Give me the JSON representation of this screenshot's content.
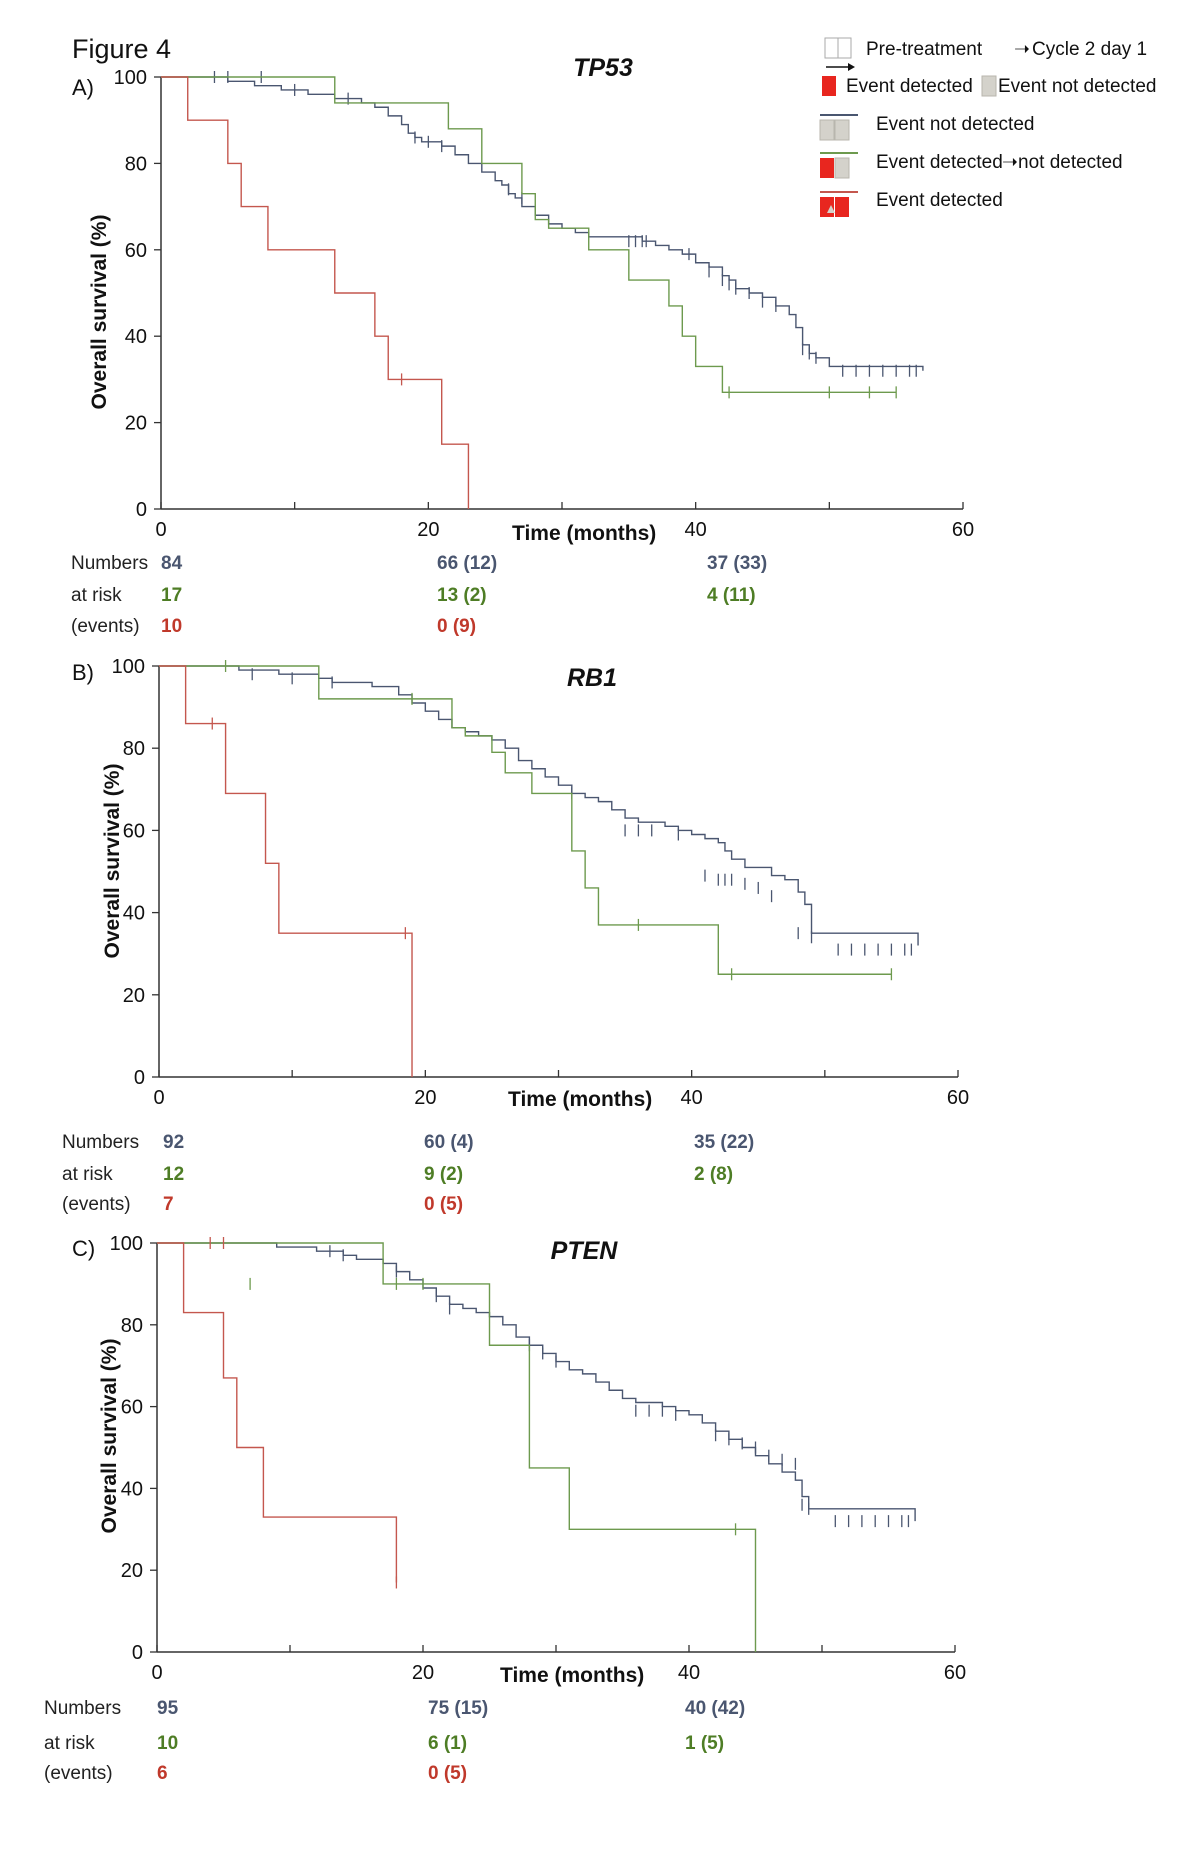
{
  "figure_title": "Figure 4",
  "legend": {
    "pretreatment_label": "Pre-treatment",
    "cycle_label": "Cycle 2 day 1",
    "detected_label": "Event detected",
    "not_detected_label": "Event not detected",
    "line_not_detected": "Event not detected",
    "line_detected_to_not_prefix": "Event detected",
    "line_detected_to_not_suffix": "not detected",
    "line_detected": "Event detected"
  },
  "colors": {
    "not_detected": "#4a5670",
    "detected_to_not": "#6d9a4e",
    "detected": "#c4574e",
    "axis": "#333333",
    "risk_grey": "#4a5670",
    "risk_green": "#4e7d25",
    "risk_red": "#c0392b",
    "swatch_red": "#e8261f",
    "swatch_grey": "#d4d2cb"
  },
  "numbers_at_risk_label": [
    "Numbers",
    "at risk",
    "(events)"
  ],
  "chart_data": [
    {
      "type": "line",
      "panel": "A)",
      "title": "TP53",
      "xlabel": "Time (months)",
      "ylabel": "Overall survival (%)",
      "xlim": [
        0,
        60
      ],
      "ylim": [
        0,
        100
      ],
      "xticks": [
        0,
        20,
        40,
        60
      ],
      "yticks": [
        0,
        20,
        40,
        60,
        80,
        100
      ],
      "series": [
        {
          "key": "not_detected",
          "x": [
            0,
            5,
            7,
            9,
            11,
            13,
            15,
            16,
            17,
            18,
            18.5,
            19,
            19.5,
            20,
            21,
            22,
            23,
            24,
            25,
            25.5,
            26,
            26.5,
            27,
            28,
            29,
            30,
            31,
            32,
            36,
            37,
            38,
            39,
            40,
            41,
            42,
            42.5,
            43,
            44,
            45,
            46,
            47,
            47.5,
            48,
            48.5,
            49,
            50,
            57
          ],
          "y": [
            100,
            99,
            98,
            97,
            96,
            95,
            94,
            93,
            91,
            89,
            87,
            86,
            85,
            85,
            84,
            82,
            80,
            78,
            76,
            75,
            73,
            72,
            70,
            68,
            66,
            65,
            64,
            63,
            62,
            61,
            60,
            59,
            57,
            56,
            54,
            53,
            51,
            50,
            49,
            47,
            45,
            42,
            38,
            36,
            35,
            33,
            32
          ],
          "censors": [
            [
              4,
              100
            ],
            [
              5,
              100
            ],
            [
              7.5,
              100
            ],
            [
              10,
              97
            ],
            [
              14,
              95
            ],
            [
              19,
              86
            ],
            [
              20,
              85
            ],
            [
              21,
              84
            ],
            [
              26,
              74
            ],
            [
              27,
              72
            ],
            [
              35,
              62
            ],
            [
              35.5,
              62
            ],
            [
              36,
              62
            ],
            [
              36.3,
              62
            ],
            [
              39.5,
              59
            ],
            [
              41,
              55
            ],
            [
              42,
              53
            ],
            [
              42.5,
              52
            ],
            [
              43,
              51
            ],
            [
              44,
              50
            ],
            [
              45,
              48
            ],
            [
              46,
              47
            ],
            [
              48,
              37
            ],
            [
              48.5,
              36
            ],
            [
              49,
              35
            ],
            [
              51,
              32
            ],
            [
              52,
              32
            ],
            [
              53,
              32
            ],
            [
              54,
              32
            ],
            [
              55,
              32
            ],
            [
              56,
              32
            ],
            [
              56.5,
              32
            ]
          ]
        },
        {
          "key": "detected_to_not",
          "x": [
            0,
            11,
            13,
            21,
            21.5,
            24,
            27,
            28,
            29,
            32,
            33,
            34,
            35,
            38,
            39,
            40,
            42,
            55
          ],
          "y": [
            100,
            100,
            94,
            94,
            88,
            80,
            73,
            67,
            65,
            60,
            60,
            60,
            53,
            47,
            40,
            33,
            27,
            27
          ],
          "censors": [
            [
              42.5,
              27
            ],
            [
              50,
              27
            ],
            [
              53,
              27
            ],
            [
              55,
              27
            ]
          ]
        },
        {
          "key": "detected",
          "x": [
            0,
            2,
            5,
            6,
            8,
            13,
            16,
            17,
            21,
            23
          ],
          "y": [
            100,
            90,
            80,
            70,
            60,
            50,
            40,
            30,
            15,
            0
          ],
          "censors": [
            [
              18,
              30
            ]
          ]
        }
      ],
      "risk": [
        {
          "key": "not_detected",
          "values": [
            "84",
            "66 (12)",
            "37 (33)"
          ]
        },
        {
          "key": "detected_to_not",
          "values": [
            "17",
            "13 (2)",
            "4 (11)"
          ]
        },
        {
          "key": "detected",
          "values": [
            "10",
            "0 (9)",
            ""
          ]
        }
      ]
    },
    {
      "type": "line",
      "panel": "B)",
      "title": "RB1",
      "xlabel": "Time (months)",
      "ylabel": "Overall survival (%)",
      "xlim": [
        0,
        60
      ],
      "ylim": [
        0,
        100
      ],
      "xticks": [
        0,
        20,
        40,
        60
      ],
      "yticks": [
        0,
        20,
        40,
        60,
        80,
        100
      ],
      "series": [
        {
          "key": "not_detected",
          "x": [
            0,
            6,
            9,
            12,
            13,
            16,
            18,
            19,
            20,
            21,
            22,
            23,
            24,
            25,
            26,
            27,
            28,
            29,
            30,
            31,
            32,
            33,
            34,
            35,
            36,
            38,
            39,
            40,
            41,
            42,
            42.5,
            43,
            44,
            46,
            47,
            48,
            48.5,
            49,
            57
          ],
          "y": [
            100,
            99,
            98,
            97,
            96,
            95,
            93,
            91,
            89,
            87,
            85,
            84,
            83,
            82,
            80,
            77,
            75,
            73,
            71,
            69,
            68,
            67,
            65,
            63,
            62,
            61,
            60,
            59,
            58,
            57,
            55,
            53,
            51,
            49,
            48,
            45,
            42,
            35,
            32
          ],
          "censors": [
            [
              7,
              98
            ],
            [
              10,
              97
            ],
            [
              13,
              96
            ],
            [
              31,
              69
            ],
            [
              35,
              60
            ],
            [
              36,
              60
            ],
            [
              37,
              60
            ],
            [
              39,
              59
            ],
            [
              41,
              49
            ],
            [
              42,
              48
            ],
            [
              42.5,
              48
            ],
            [
              43,
              48
            ],
            [
              44,
              47
            ],
            [
              45,
              46
            ],
            [
              46,
              44
            ],
            [
              48,
              35
            ],
            [
              49,
              34
            ],
            [
              51,
              31
            ],
            [
              52,
              31
            ],
            [
              53,
              31
            ],
            [
              54,
              31
            ],
            [
              55,
              31
            ],
            [
              56,
              31
            ],
            [
              56.5,
              31
            ]
          ]
        },
        {
          "key": "detected_to_not",
          "x": [
            0,
            11,
            12,
            21,
            22,
            23,
            24,
            25,
            26,
            27,
            28,
            30,
            31,
            32,
            33,
            34,
            42,
            55
          ],
          "y": [
            100,
            100,
            92,
            92,
            85,
            83,
            83,
            79,
            74,
            74,
            69,
            69,
            55,
            46,
            37,
            37,
            25,
            25
          ],
          "censors": [
            [
              5,
              100
            ],
            [
              19,
              92
            ],
            [
              36,
              37
            ],
            [
              43,
              25
            ],
            [
              55,
              25
            ]
          ]
        },
        {
          "key": "detected",
          "x": [
            0,
            2,
            5,
            8,
            9,
            19
          ],
          "y": [
            100,
            86,
            69,
            52,
            35,
            0
          ],
          "censors": [
            [
              4,
              86
            ],
            [
              18.5,
              35
            ]
          ]
        }
      ],
      "risk": [
        {
          "key": "not_detected",
          "values": [
            "92",
            "60 (4)",
            "35 (22)"
          ]
        },
        {
          "key": "detected_to_not",
          "values": [
            "12",
            "9 (2)",
            "2 (8)"
          ]
        },
        {
          "key": "detected",
          "values": [
            "7",
            "0 (5)",
            ""
          ]
        }
      ]
    },
    {
      "type": "line",
      "panel": "C)",
      "title": "PTEN",
      "xlabel": "Time (months)",
      "ylabel": "Overall survival (%)",
      "xlim": [
        0,
        60
      ],
      "ylim": [
        0,
        100
      ],
      "xticks": [
        0,
        20,
        40,
        60
      ],
      "yticks": [
        0,
        20,
        40,
        60,
        80,
        100
      ],
      "series": [
        {
          "key": "not_detected",
          "x": [
            0,
            9,
            12,
            14,
            15,
            17,
            18,
            19,
            20,
            21,
            22,
            23,
            24,
            25,
            26,
            27,
            28,
            29,
            30,
            31,
            32,
            33,
            34,
            35,
            36,
            38,
            39,
            40,
            41,
            42,
            43,
            44,
            45,
            46,
            47,
            48,
            48.5,
            49,
            57
          ],
          "y": [
            100,
            99,
            98,
            97,
            96,
            95,
            93,
            91,
            89,
            87,
            85,
            84,
            83,
            82,
            80,
            77,
            75,
            73,
            71,
            69,
            68,
            66,
            64,
            62,
            61,
            60,
            59,
            58,
            56,
            54,
            52,
            50,
            48,
            46,
            44,
            42,
            38,
            35,
            32
          ],
          "censors": [
            [
              13,
              98
            ],
            [
              14,
              97
            ],
            [
              18,
              93
            ],
            [
              21,
              87
            ],
            [
              22,
              84
            ],
            [
              28,
              75
            ],
            [
              29,
              73
            ],
            [
              30,
              71
            ],
            [
              36,
              59
            ],
            [
              37,
              59
            ],
            [
              38,
              59
            ],
            [
              39,
              58
            ],
            [
              42,
              53
            ],
            [
              43,
              52
            ],
            [
              44,
              51
            ],
            [
              45,
              50
            ],
            [
              46,
              48
            ],
            [
              47,
              47
            ],
            [
              48,
              46
            ],
            [
              48.5,
              36
            ],
            [
              49,
              35
            ],
            [
              51,
              32
            ],
            [
              52,
              32
            ],
            [
              53,
              32
            ],
            [
              54,
              32
            ],
            [
              55,
              32
            ],
            [
              56,
              32
            ],
            [
              56.5,
              32
            ]
          ]
        },
        {
          "key": "detected_to_not",
          "x": [
            0,
            6,
            17,
            18,
            21,
            25,
            25.5,
            28,
            31,
            45
          ],
          "y": [
            100,
            100,
            90,
            90,
            90,
            75,
            75,
            45,
            30,
            0
          ],
          "censors": [
            [
              7,
              90
            ],
            [
              18,
              90
            ],
            [
              20,
              90
            ],
            [
              43.5,
              30
            ]
          ]
        },
        {
          "key": "detected",
          "x": [
            0,
            2,
            5,
            6,
            7,
            8,
            18
          ],
          "y": [
            100,
            83,
            67,
            50,
            50,
            33,
            17
          ],
          "censors": [
            [
              4,
              100
            ],
            [
              5,
              100
            ],
            [
              18,
              17
            ]
          ]
        }
      ],
      "risk": [
        {
          "key": "not_detected",
          "values": [
            "95",
            "75 (15)",
            "40 (42)"
          ]
        },
        {
          "key": "detected_to_not",
          "values": [
            "10",
            "6 (1)",
            "1 (5)"
          ]
        },
        {
          "key": "detected",
          "values": [
            "6",
            "0 (5)",
            ""
          ]
        }
      ]
    }
  ]
}
